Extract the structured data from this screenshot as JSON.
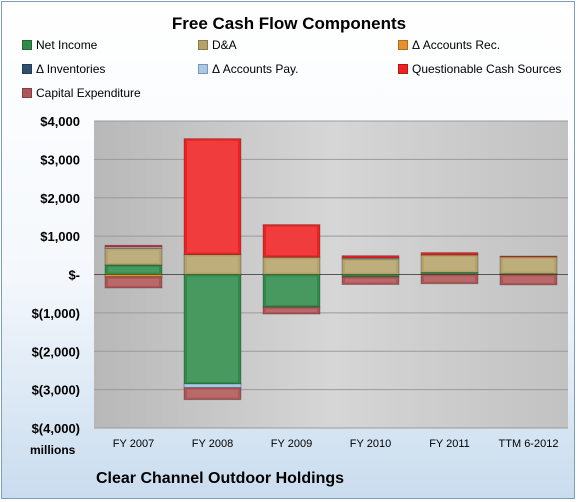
{
  "chart_data": {
    "type": "bar",
    "stacked": true,
    "title": "Free Cash Flow Components",
    "subtitle": "Clear Channel Outdoor Holdings",
    "y_unit_label": "millions",
    "categories": [
      "FY 2007",
      "FY 2008",
      "FY 2009",
      "FY 2010",
      "FY 2011",
      "TTM 6-2012"
    ],
    "ylim": [
      -4000,
      4000
    ],
    "y_ticks": [
      4000,
      3000,
      2000,
      1000,
      0,
      -1000,
      -2000,
      -3000,
      -4000
    ],
    "y_tick_labels": [
      "$4,000",
      "$3,000",
      "$2,000",
      "$1,000",
      "$-",
      "$(1,000)",
      "$(2,000)",
      "$(3,000)",
      "$(4,000)"
    ],
    "grid": true,
    "legend_position": "top",
    "series": [
      {
        "name": "Net Income",
        "color": "#2e8b4a",
        "values": [
          250,
          -2850,
          -850,
          -60,
          50,
          20
        ]
      },
      {
        "name": "D&A",
        "color": "#b5a36a",
        "values": [
          430,
          520,
          450,
          410,
          460,
          440
        ]
      },
      {
        "name": "Δ Accounts Rec.",
        "color": "#e8912a",
        "values": [
          -60,
          0,
          0,
          0,
          0,
          0
        ]
      },
      {
        "name": "Δ Inventories",
        "color": "#2f4f6f",
        "values": [
          0,
          0,
          0,
          0,
          0,
          0
        ]
      },
      {
        "name": "Δ Accounts Pay.",
        "color": "#a8c8e8",
        "values": [
          40,
          -100,
          0,
          20,
          0,
          0
        ]
      },
      {
        "name": "Questionable Cash Sources",
        "color": "#ee2222",
        "values": [
          40,
          3020,
          850,
          60,
          60,
          20
        ]
      },
      {
        "name": "Capital Expenditure",
        "color": "#b05555",
        "values": [
          -290,
          -310,
          -180,
          -200,
          -240,
          -270
        ]
      }
    ]
  }
}
